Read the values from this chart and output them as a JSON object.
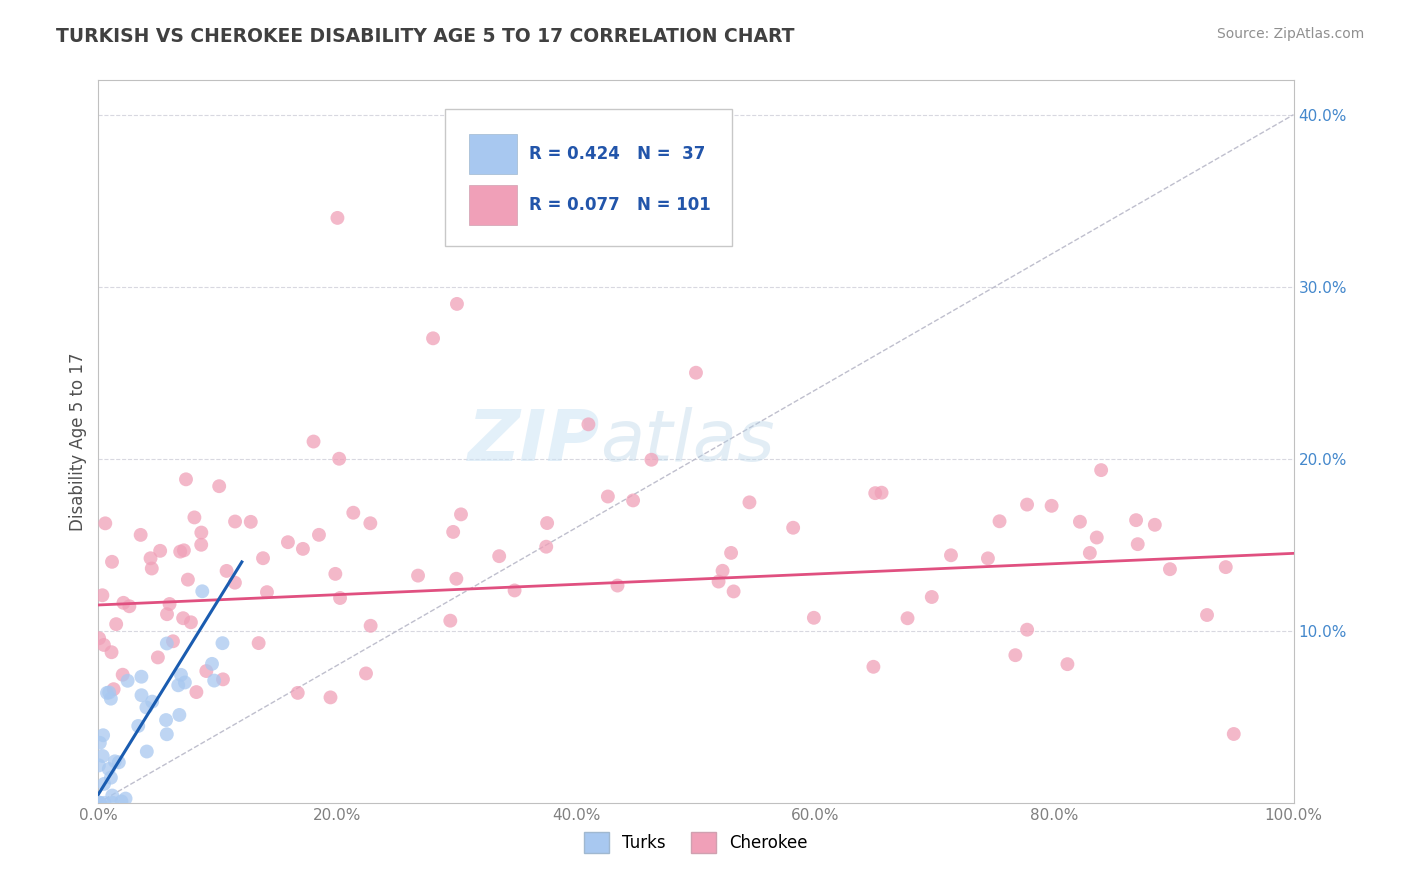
{
  "title": "TURKISH VS CHEROKEE DISABILITY AGE 5 TO 17 CORRELATION CHART",
  "source": "Source: ZipAtlas.com",
  "ylabel_label": "Disability Age 5 to 17",
  "legend_labels": [
    "Turks",
    "Cherokee"
  ],
  "R_turks": 0.424,
  "N_turks": 37,
  "R_cherokee": 0.077,
  "N_cherokee": 101,
  "turks_color": "#a8c8f0",
  "cherokee_color": "#f0a0b8",
  "turks_line_color": "#1a5cb0",
  "cherokee_line_color": "#e05080",
  "diag_line_color": "#b8b8c8",
  "background_color": "#ffffff",
  "grid_color": "#d8d8e0",
  "title_color": "#404040",
  "source_color": "#909090",
  "tick_color_y": "#4488cc",
  "tick_color_x": "#808080",
  "watermark_zip": "ZIP",
  "watermark_atlas": "atlas",
  "xlim": [
    0,
    100
  ],
  "ylim": [
    0,
    42
  ],
  "yticks": [
    10,
    20,
    30,
    40
  ],
  "xticks": [
    0,
    20,
    40,
    60,
    80,
    100
  ]
}
